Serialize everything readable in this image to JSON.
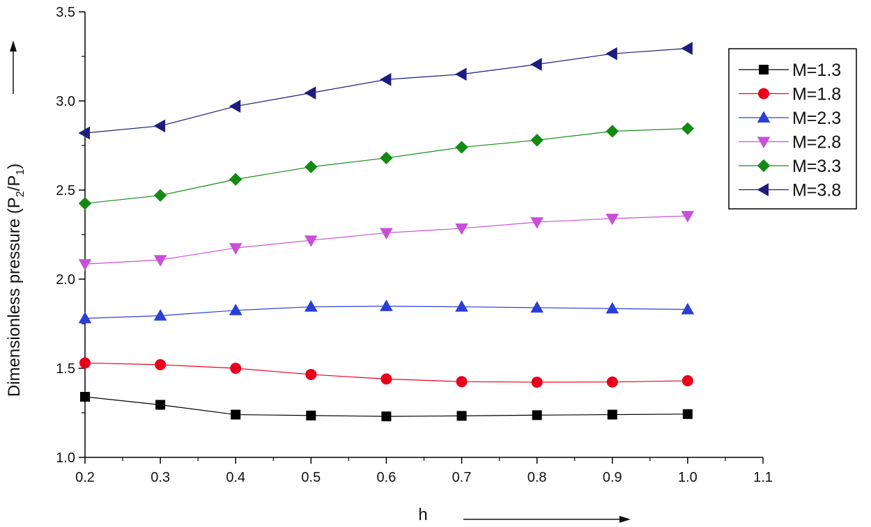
{
  "chart_data": {
    "type": "line",
    "title": "",
    "xlabel": "h",
    "ylabel_main": "Dimensionless pressure (P",
    "ylabel_sub1": "2",
    "ylabel_mid": "/P",
    "ylabel_sub2": "1",
    "ylabel_end": ")",
    "xlim": [
      0.2,
      1.1
    ],
    "ylim": [
      1.0,
      3.5
    ],
    "xticks": [
      "0.2",
      "0.3",
      "0.4",
      "0.5",
      "0.6",
      "0.7",
      "0.8",
      "0.9",
      "1.0",
      "1.1"
    ],
    "yticks": [
      "1.0",
      "1.5",
      "2.0",
      "2.5",
      "3.0",
      "3.5"
    ],
    "x": [
      0.2,
      0.3,
      0.4,
      0.5,
      0.6,
      0.7,
      0.8,
      0.9,
      1.0
    ],
    "legend_position": "top-right",
    "series": [
      {
        "name": "M=1.3",
        "color": "#000000",
        "marker": "square",
        "values": [
          1.34,
          1.295,
          1.24,
          1.235,
          1.23,
          1.233,
          1.237,
          1.24,
          1.243
        ]
      },
      {
        "name": "M=1.8",
        "color": "#e8001c",
        "marker": "circle",
        "values": [
          1.53,
          1.52,
          1.5,
          1.465,
          1.44,
          1.425,
          1.422,
          1.423,
          1.43
        ]
      },
      {
        "name": "M=2.3",
        "color": "#2b3fd6",
        "marker": "triangle-up",
        "values": [
          1.78,
          1.795,
          1.825,
          1.845,
          1.848,
          1.845,
          1.84,
          1.835,
          1.83
        ]
      },
      {
        "name": "M=2.8",
        "color": "#c850d8",
        "marker": "triangle-down",
        "values": [
          2.085,
          2.108,
          2.175,
          2.218,
          2.26,
          2.285,
          2.32,
          2.34,
          2.355
        ]
      },
      {
        "name": "M=3.3",
        "color": "#138a13",
        "marker": "diamond",
        "values": [
          2.425,
          2.47,
          2.56,
          2.63,
          2.68,
          2.74,
          2.78,
          2.83,
          2.845
        ]
      },
      {
        "name": "M=3.8",
        "color": "#1c1c80",
        "marker": "triangle-left",
        "values": [
          2.82,
          2.86,
          2.97,
          3.045,
          3.12,
          3.15,
          3.205,
          3.265,
          3.295
        ]
      }
    ]
  }
}
